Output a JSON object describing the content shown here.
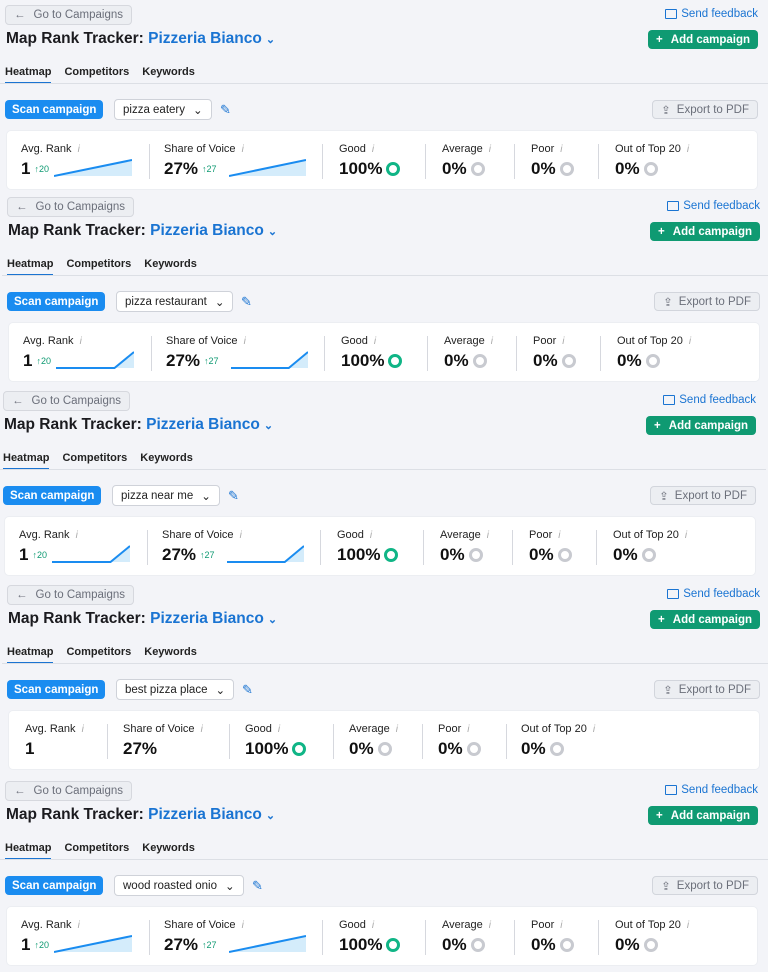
{
  "common": {
    "back_label": "Go to Campaigns",
    "title_prefix": "Map Rank Tracker:",
    "business": "Pizzeria Bianco",
    "feedback_label": "Send feedback",
    "add_label": "Add campaign",
    "tabs": [
      "Heatmap",
      "Competitors",
      "Keywords"
    ],
    "scan_label": "Scan campaign",
    "export_label": "Export to PDF",
    "info": "i",
    "labels": {
      "avg_rank": "Avg. Rank",
      "sov": "Share of Voice",
      "good": "Good",
      "average": "Average",
      "poor": "Poor",
      "out": "Out of Top 20"
    }
  },
  "colors": {
    "accent": "#1a74d2",
    "scan": "#1a8cf0",
    "add": "#0f9a72",
    "good": "#10b586"
  },
  "panels": [
    {
      "keyword": "pizza eatery",
      "avg_rank": "1",
      "avg_delta": "↑20",
      "sov": "27%",
      "sov_delta": "↑27",
      "good": "100%",
      "average": "0%",
      "poor": "0%",
      "out": "0%",
      "trend": [
        0,
        1
      ]
    },
    {
      "keyword": "pizza restaurant",
      "avg_rank": "1",
      "avg_delta": "↑20",
      "sov": "27%",
      "sov_delta": "↑27",
      "good": "100%",
      "average": "0%",
      "poor": "0%",
      "out": "0%",
      "trend": [
        0,
        0,
        0,
        0,
        1
      ]
    },
    {
      "keyword": "pizza near me",
      "avg_rank": "1",
      "avg_delta": "↑20",
      "sov": "27%",
      "sov_delta": "↑27",
      "good": "100%",
      "average": "0%",
      "poor": "0%",
      "out": "0%",
      "trend": [
        0,
        0,
        0,
        0,
        1
      ]
    },
    {
      "keyword": "best pizza place",
      "avg_rank": "1",
      "avg_delta": null,
      "sov": "27%",
      "sov_delta": null,
      "good": "100%",
      "average": "0%",
      "poor": "0%",
      "out": "0%",
      "trend": null
    },
    {
      "keyword": "wood roasted onio",
      "avg_rank": "1",
      "avg_delta": "↑20",
      "sov": "27%",
      "sov_delta": "↑27",
      "good": "100%",
      "average": "0%",
      "poor": "0%",
      "out": "0%",
      "trend": [
        0,
        1
      ]
    }
  ]
}
